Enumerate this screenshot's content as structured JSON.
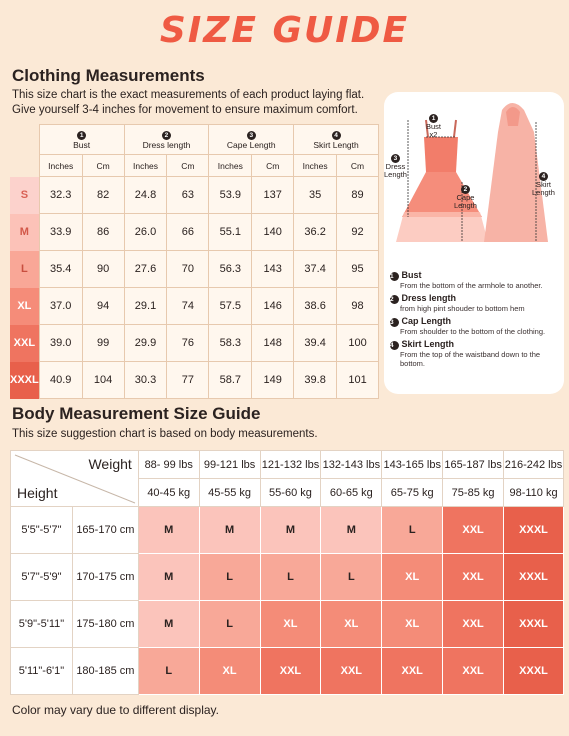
{
  "page_title": "SIZE GUIDE",
  "clothing": {
    "title": "Clothing Measurements",
    "desc1": "This size chart is the exact measurements of each product laying flat.",
    "desc2": "Give yourself 3-4 inches for movement to ensure maximum comfort.",
    "groups": [
      {
        "num": "1",
        "label": "Bust"
      },
      {
        "num": "2",
        "label": "Dress length"
      },
      {
        "num": "3",
        "label": "Cape Length"
      },
      {
        "num": "4",
        "label": "Skirt Length"
      }
    ],
    "units": {
      "inches": "Inches",
      "cm": "Cm"
    },
    "rows": [
      {
        "size": "S",
        "color": "#fcd2cc",
        "text_color": "#d96155",
        "v": [
          "32.3",
          "82",
          "24.8",
          "63",
          "53.9",
          "137",
          "35",
          "89"
        ]
      },
      {
        "size": "M",
        "color": "#fcc2b8",
        "text_color": "#d25849",
        "v": [
          "33.9",
          "86",
          "26.0",
          "66",
          "55.1",
          "140",
          "36.2",
          "92"
        ]
      },
      {
        "size": "L",
        "color": "#f9a797",
        "text_color": "#c84e3f",
        "v": [
          "35.4",
          "90",
          "27.6",
          "70",
          "56.3",
          "143",
          "37.4",
          "95"
        ]
      },
      {
        "size": "XL",
        "color": "#f58c79",
        "text_color": "#ffffff",
        "v": [
          "37.0",
          "94",
          "29.1",
          "74",
          "57.5",
          "146",
          "38.6",
          "98"
        ]
      },
      {
        "size": "XXL",
        "color": "#ef7460",
        "text_color": "#ffffff",
        "v": [
          "39.0",
          "99",
          "29.9",
          "76",
          "58.3",
          "148",
          "39.4",
          "100"
        ]
      },
      {
        "size": "XXXL",
        "color": "#e8604b",
        "text_color": "#ffffff",
        "v": [
          "40.9",
          "104",
          "30.3",
          "77",
          "58.7",
          "149",
          "39.8",
          "101"
        ]
      }
    ]
  },
  "diagram": {
    "labels": {
      "bust": "Bust",
      "bust_x2": "x2",
      "dress": "Dress\nLength",
      "cape": "Cape\nLength",
      "skirt": "Skirt\nLength"
    },
    "legend": [
      {
        "num": "1",
        "title": "Bust",
        "desc": "From the bottom of the armhole to another."
      },
      {
        "num": "2",
        "title": "Dress length",
        "desc": "from high pint shouder to bottom hem"
      },
      {
        "num": "3",
        "title": "Cap Length",
        "desc": "From shoulder to the bottom of the clothing."
      },
      {
        "num": "4",
        "title": "Skirt Length",
        "desc": "From the top of the waistband down to the bottom."
      }
    ]
  },
  "body": {
    "title": "Body Measurement Size Guide",
    "desc": "This size suggestion chart is based on body measurements.",
    "corner_weight": "Weight",
    "corner_height": "Height",
    "weights_lbs": [
      "88- 99 lbs",
      "99-121 lbs",
      "121-132 lbs",
      "132-143 lbs",
      "143-165 lbs",
      "165-187 lbs",
      "216-242 lbs"
    ],
    "weights_kg": [
      "40-45 kg",
      "45-55 kg",
      "55-60 kg",
      "60-65 kg",
      "65-75 kg",
      "75-85 kg",
      "98-110 kg"
    ],
    "size_colors": {
      "M": "#fbc4bb",
      "L": "#f8a898",
      "XL": "#f48c78",
      "XXL": "#ef7460",
      "XXXL": "#e8604b"
    },
    "rows": [
      {
        "ft": "5'5\"-5'7\"",
        "cm": "165-170 cm",
        "sizes": [
          "M",
          "M",
          "M",
          "M",
          "L",
          "XXL",
          "XXXL"
        ]
      },
      {
        "ft": "5'7\"-5'9\"",
        "cm": "170-175 cm",
        "sizes": [
          "M",
          "L",
          "L",
          "L",
          "XL",
          "XXL",
          "XXXL"
        ]
      },
      {
        "ft": "5'9\"-5'11\"",
        "cm": "175-180 cm",
        "sizes": [
          "M",
          "L",
          "XL",
          "XL",
          "XL",
          "XXL",
          "XXXL"
        ]
      },
      {
        "ft": "5'11\"-6'1\"",
        "cm": "180-185 cm",
        "sizes": [
          "L",
          "XL",
          "XXL",
          "XXL",
          "XXL",
          "XXL",
          "XXXL"
        ]
      }
    ]
  },
  "footer": "Color may vary due to different display."
}
